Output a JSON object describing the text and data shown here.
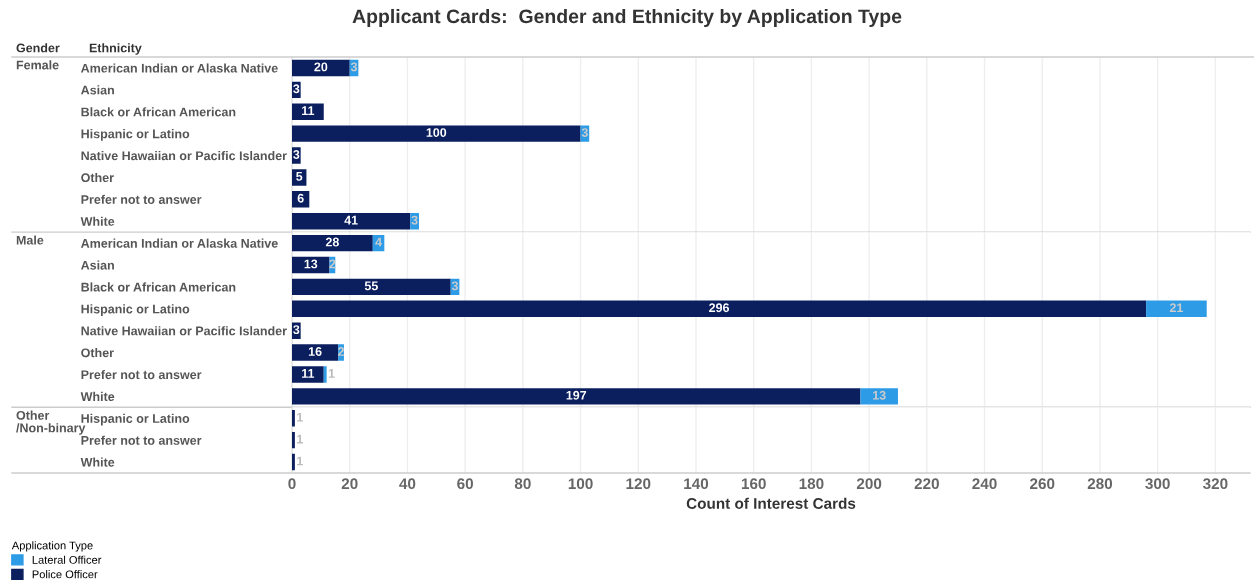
{
  "chart_data": [
    {
      "type": "bar",
      "orientation": "horizontal",
      "stacked": true,
      "title": "Applicant Cards:  Gender and Ethnicity by Application Type",
      "ylabel": "Female",
      "annotations": [
        "Gender",
        "Ethnicity"
      ],
      "categories": [
        "American Indian or Alaska Native",
        "Asian",
        "Black or African American",
        "Hispanic or Latino",
        "Native Hawaiian or Pacific Islander",
        "Other",
        "Prefer not to answer",
        "White"
      ],
      "series": [
        {
          "color": "#0b1f5e",
          "values": [
            20,
            3,
            11,
            100,
            3,
            5,
            6,
            41
          ]
        },
        {
          "color": "#2e9be6",
          "values": [
            3,
            null,
            null,
            3,
            null,
            null,
            null,
            3
          ]
        }
      ],
      "xlim": [
        0,
        332
      ],
      "xticks": [
        0,
        20,
        40,
        60,
        80,
        100,
        120,
        140,
        160,
        180,
        200,
        220,
        240,
        260,
        280,
        300,
        320
      ],
      "tick_labels": "y",
      "grid": "x",
      "data_labels": true
    },
    {
      "type": "bar",
      "orientation": "horizontal",
      "stacked": true,
      "ylabel": "Male",
      "categories": [
        "American Indian or Alaska Native",
        "Asian",
        "Black or African American",
        "Hispanic or Latino",
        "Native Hawaiian or Pacific Islander",
        "Other",
        "Prefer not to answer",
        "White"
      ],
      "series": [
        {
          "color": "#0b1f5e",
          "values": [
            28,
            13,
            55,
            296,
            3,
            16,
            11,
            197
          ]
        },
        {
          "color": "#2e9be6",
          "values": [
            4,
            2,
            3,
            21,
            null,
            2,
            1,
            13
          ]
        }
      ],
      "xlim": [
        0,
        332
      ],
      "xticks": [
        0,
        20,
        40,
        60,
        80,
        100,
        120,
        140,
        160,
        180,
        200,
        220,
        240,
        260,
        280,
        300,
        320
      ],
      "tick_labels": "y",
      "grid": "x",
      "data_labels": true
    },
    {
      "type": "bar",
      "orientation": "horizontal",
      "stacked": true,
      "ylabel": "Other\n/Non-binary",
      "xlabel": "Count of Interest Cards",
      "legend_title": "Application Type",
      "categories": [
        "Hispanic or Latino",
        "Prefer not to answer",
        "White"
      ],
      "series": [
        {
          "name": "Police Officer",
          "color": "#0b1f5e",
          "values": [
            1,
            1,
            1
          ]
        },
        {
          "name": "Lateral Officer",
          "color": "#2e9be6",
          "values": [
            null,
            null,
            null
          ]
        }
      ],
      "xlim": [
        0,
        332
      ],
      "xticks": [
        0,
        20,
        40,
        60,
        80,
        100,
        120,
        140,
        160,
        180,
        200,
        220,
        240,
        260,
        280,
        300,
        320
      ],
      "grid": "x",
      "legend": "bottom left",
      "data_labels": true
    }
  ]
}
